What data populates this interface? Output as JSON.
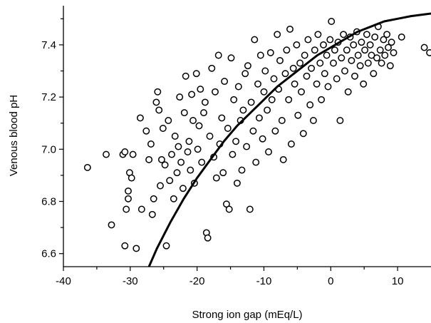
{
  "chart_data": {
    "type": "scatter",
    "title": "",
    "xlabel": "Strong ion gap (mEq/L)",
    "ylabel": "Venous blood pH",
    "xlim": [
      -40,
      15
    ],
    "ylim": [
      6.55,
      7.55
    ],
    "xticks": [
      -40,
      -30,
      -20,
      -10,
      0,
      10
    ],
    "xtick_labels": [
      "-40",
      "-30",
      "-20",
      "-10",
      "0",
      "10"
    ],
    "xminor": [
      -35,
      -25,
      -15,
      -5,
      5
    ],
    "yticks": [
      6.6,
      6.8,
      7.0,
      7.2,
      7.4
    ],
    "ytick_labels": [
      "6.6",
      "6.8",
      "7.0",
      "7.2",
      "7.4"
    ],
    "yminor": [
      6.7,
      6.9,
      7.1,
      7.3,
      7.5
    ],
    "grid": false,
    "legend": "none",
    "marker": "open-circle",
    "series": [
      {
        "points": [
          [
            -36.4,
            6.93
          ],
          [
            -33.6,
            6.98
          ],
          [
            -32.8,
            6.71
          ],
          [
            -31.1,
            6.98
          ],
          [
            -30.8,
            6.99
          ],
          [
            -30.8,
            6.63
          ],
          [
            -30.3,
            6.84
          ],
          [
            -30.1,
            6.91
          ],
          [
            -30.3,
            6.81
          ],
          [
            -29.8,
            6.89
          ],
          [
            -29.6,
            6.98
          ],
          [
            -29.1,
            6.62
          ],
          [
            -28.5,
            7.12
          ],
          [
            -28.3,
            6.77
          ],
          [
            -30.6,
            6.77
          ],
          [
            -27.6,
            7.07
          ],
          [
            -27.2,
            6.96
          ],
          [
            -26.9,
            7.02
          ],
          [
            -26.7,
            6.75
          ],
          [
            -26.5,
            6.81
          ],
          [
            -26.1,
            7.18
          ],
          [
            -25.9,
            7.22
          ],
          [
            -25.7,
            7.15
          ],
          [
            -25.5,
            6.86
          ],
          [
            -25.3,
            6.96
          ],
          [
            -25.1,
            7.08
          ],
          [
            -24.8,
            6.94
          ],
          [
            -24.6,
            6.63
          ],
          [
            -24.3,
            7.11
          ],
          [
            -24.1,
            6.88
          ],
          [
            -23.8,
            6.98
          ],
          [
            -23.5,
            6.81
          ],
          [
            -23.3,
            7.05
          ],
          [
            -23.0,
            6.91
          ],
          [
            -22.8,
            7.01
          ],
          [
            -22.6,
            7.2
          ],
          [
            -22.4,
            6.95
          ],
          [
            -22.1,
            6.85
          ],
          [
            -21.9,
            7.14
          ],
          [
            -21.7,
            7.28
          ],
          [
            -21.4,
            6.99
          ],
          [
            -21.2,
            7.03
          ],
          [
            -21.0,
            6.92
          ],
          [
            -20.8,
            7.21
          ],
          [
            -20.6,
            7.11
          ],
          [
            -20.4,
            6.87
          ],
          [
            -20.1,
            7.29
          ],
          [
            -19.9,
            7.0
          ],
          [
            -19.7,
            7.09
          ],
          [
            -19.5,
            7.23
          ],
          [
            -19.3,
            6.95
          ],
          [
            -19.0,
            7.14
          ],
          [
            -18.8,
            7.18
          ],
          [
            -18.6,
            6.68
          ],
          [
            -18.4,
            6.66
          ],
          [
            -18.1,
            7.05
          ],
          [
            -17.8,
            7.31
          ],
          [
            -17.5,
            6.97
          ],
          [
            -17.3,
            7.22
          ],
          [
            -17.1,
            6.89
          ],
          [
            -16.8,
            7.36
          ],
          [
            -16.6,
            7.02
          ],
          [
            -16.3,
            7.12
          ],
          [
            -16.1,
            6.91
          ],
          [
            -15.9,
            7.26
          ],
          [
            -15.6,
            6.79
          ],
          [
            -15.4,
            7.08
          ],
          [
            -15.2,
            6.77
          ],
          [
            -14.9,
            7.35
          ],
          [
            -14.7,
            6.98
          ],
          [
            -14.5,
            7.19
          ],
          [
            -14.2,
            7.03
          ],
          [
            -14.0,
            6.87
          ],
          [
            -13.8,
            7.24
          ],
          [
            -13.5,
            7.11
          ],
          [
            -13.3,
            6.92
          ],
          [
            -13.1,
            7.15
          ],
          [
            -12.8,
            7.29
          ],
          [
            -12.6,
            7.01
          ],
          [
            -12.4,
            7.32
          ],
          [
            -12.1,
            6.77
          ],
          [
            -11.9,
            7.18
          ],
          [
            -11.6,
            7.07
          ],
          [
            -11.4,
            7.42
          ],
          [
            -11.2,
            6.95
          ],
          [
            -10.9,
            7.25
          ],
          [
            -10.7,
            7.12
          ],
          [
            -10.5,
            7.36
          ],
          [
            -10.2,
            7.04
          ],
          [
            -10.0,
            7.22
          ],
          [
            -9.8,
            7.3
          ],
          [
            -9.5,
            7.15
          ],
          [
            -9.3,
            6.99
          ],
          [
            -9.0,
            7.37
          ],
          [
            -8.8,
            7.19
          ],
          [
            -8.5,
            7.27
          ],
          [
            -8.3,
            7.07
          ],
          [
            -8.0,
            7.44
          ],
          [
            -7.8,
            7.23
          ],
          [
            -7.6,
            7.34
          ],
          [
            -7.3,
            7.11
          ],
          [
            -7.1,
            6.96
          ],
          [
            -6.8,
            7.29
          ],
          [
            -6.6,
            7.38
          ],
          [
            -6.3,
            7.19
          ],
          [
            -6.1,
            7.46
          ],
          [
            -5.9,
            7.02
          ],
          [
            -5.6,
            7.31
          ],
          [
            -5.4,
            7.25
          ],
          [
            -5.1,
            7.4
          ],
          [
            -4.9,
            7.13
          ],
          [
            -4.6,
            7.33
          ],
          [
            -4.4,
            7.22
          ],
          [
            -4.1,
            7.06
          ],
          [
            -3.9,
            7.36
          ],
          [
            -3.6,
            7.28
          ],
          [
            -3.4,
            7.42
          ],
          [
            -3.1,
            7.17
          ],
          [
            -2.9,
            7.31
          ],
          [
            -2.6,
            7.11
          ],
          [
            -2.4,
            7.38
          ],
          [
            -2.1,
            7.25
          ],
          [
            -1.9,
            7.44
          ],
          [
            -1.6,
            7.33
          ],
          [
            -1.4,
            7.19
          ],
          [
            -1.1,
            7.4
          ],
          [
            -0.9,
            7.29
          ],
          [
            -0.6,
            7.36
          ],
          [
            -0.4,
            7.24
          ],
          [
            -0.1,
            7.42
          ],
          [
            0.1,
            7.49
          ],
          [
            0.4,
            7.33
          ],
          [
            0.6,
            7.38
          ],
          [
            0.9,
            7.27
          ],
          [
            1.1,
            7.41
          ],
          [
            1.4,
            7.11
          ],
          [
            1.6,
            7.35
          ],
          [
            1.9,
            7.44
          ],
          [
            2.1,
            7.3
          ],
          [
            2.4,
            7.38
          ],
          [
            2.6,
            7.22
          ],
          [
            2.9,
            7.43
          ],
          [
            3.1,
            7.34
          ],
          [
            3.4,
            7.4
          ],
          [
            3.6,
            7.28
          ],
          [
            3.9,
            7.45
          ],
          [
            4.1,
            7.36
          ],
          [
            4.4,
            7.32
          ],
          [
            4.6,
            7.41
          ],
          [
            4.9,
            7.25
          ],
          [
            5.1,
            7.38
          ],
          [
            5.4,
            7.44
          ],
          [
            5.6,
            7.33
          ],
          [
            5.9,
            7.4
          ],
          [
            6.1,
            7.36
          ],
          [
            6.4,
            7.29
          ],
          [
            6.6,
            7.43
          ],
          [
            6.9,
            7.35
          ],
          [
            7.1,
            7.47
          ],
          [
            7.4,
            7.38
          ],
          [
            7.6,
            7.33
          ],
          [
            7.9,
            7.42
          ],
          [
            8.1,
            7.36
          ],
          [
            8.4,
            7.44
          ],
          [
            8.6,
            7.39
          ],
          [
            8.9,
            7.32
          ],
          [
            9.1,
            7.41
          ],
          [
            9.4,
            7.37
          ],
          [
            10.6,
            7.43
          ],
          [
            14.0,
            7.39
          ],
          [
            14.8,
            7.37
          ]
        ]
      }
    ],
    "fit_curve": [
      [
        -27.2,
        6.55
      ],
      [
        -26,
        6.62
      ],
      [
        -24,
        6.72
      ],
      [
        -22,
        6.81
      ],
      [
        -20,
        6.89
      ],
      [
        -18,
        6.96
      ],
      [
        -16,
        7.03
      ],
      [
        -14,
        7.09
      ],
      [
        -12,
        7.14
      ],
      [
        -10,
        7.19
      ],
      [
        -8,
        7.24
      ],
      [
        -6,
        7.28
      ],
      [
        -4,
        7.32
      ],
      [
        -2,
        7.36
      ],
      [
        0,
        7.39
      ],
      [
        2,
        7.42
      ],
      [
        4,
        7.45
      ],
      [
        6,
        7.47
      ],
      [
        8,
        7.49
      ],
      [
        10,
        7.5
      ],
      [
        12,
        7.51
      ],
      [
        15,
        7.52
      ]
    ]
  }
}
